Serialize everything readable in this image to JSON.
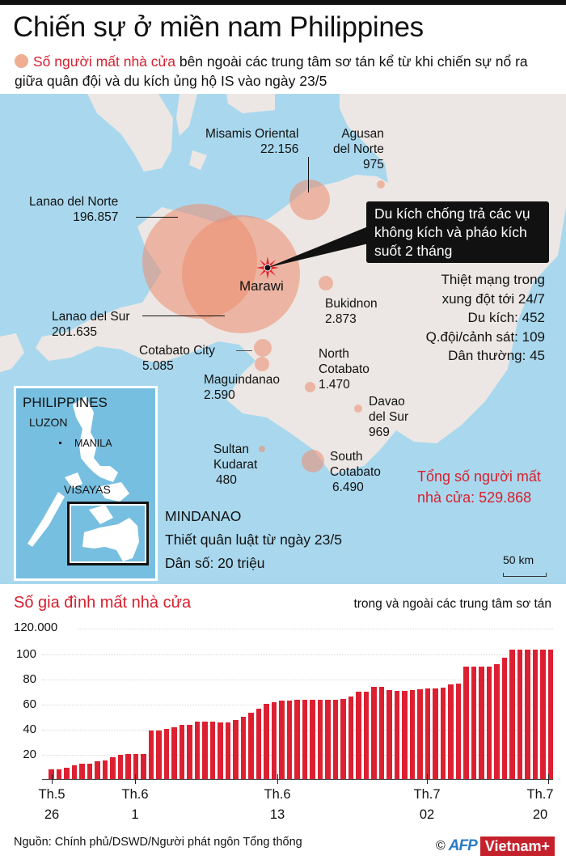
{
  "header": {
    "title": "Chiến sự ở miền nam Philippines",
    "subtitle_highlight": "Số người mất nhà cửa",
    "subtitle_rest": " bên ngoài các trung tâm sơ tán kể từ khi chiến sự nổ ra giữa quân đội và du kích ủng hộ IS vào ngày 23/5",
    "bullet_color": "#efad92",
    "accent_color": "#d6202e"
  },
  "map": {
    "provinces": [
      {
        "name": "Misamis Oriental",
        "value": "22.156"
      },
      {
        "name": "Agusan del Norte",
        "name_line1": "Agusan",
        "name_line2": "del Norte",
        "value": "975"
      },
      {
        "name": "Lanao del Norte",
        "value": "196.857"
      },
      {
        "name": "Lanao del Sur",
        "value": "201.635"
      },
      {
        "name": "Cotabato City",
        "value": "5.085"
      },
      {
        "name": "Maguindanao",
        "value": "2.590"
      },
      {
        "name": "Bukidnon",
        "value": "2.873"
      },
      {
        "name": "North Cotabato",
        "name_line1": "North",
        "name_line2": "Cotabato",
        "value": "1.470"
      },
      {
        "name": "Davao del Sur",
        "name_line1": "Davao",
        "name_line2": "del Sur",
        "value": "969"
      },
      {
        "name": "Sultan Kudarat",
        "name_line1": "Sultan",
        "name_line2": "Kudarat",
        "value": "480"
      },
      {
        "name": "South Cotabato",
        "name_line1": "South",
        "name_line2": "Cotabato",
        "value": "6.490"
      }
    ],
    "city": "Marawi",
    "callout": "Du kích chống trả các vụ không kích và pháo kích suốt 2 tháng",
    "casualties": {
      "heading_line1": "Thiệt mạng trong",
      "heading_line2": "xung đột tới 24/7",
      "rebels": "Du kích: 452",
      "military": "Q.đội/cảnh sát: 109",
      "civilians": "Dân thường: 45"
    },
    "total_line1": "Tổng số người mất",
    "total_line2": "nhà cửa: 529.868",
    "inset": {
      "title": "PHILIPPINES",
      "luzon": "LUZON",
      "manila": "MANILA",
      "visayas": "VISAYAS"
    },
    "region": {
      "name": "MINDANAO",
      "martial_law": "Thiết quân luật từ ngày 23/5",
      "population": "Dân số: 20 triệu"
    },
    "scale": "50 km",
    "colors": {
      "sea": "#a9d8ee",
      "land": "#ece7e4",
      "bubble": "#ec8c6e"
    }
  },
  "chart": {
    "title": "Số gia đình mất nhà cửa",
    "subtitle": "trong và ngoài các trung tâm sơ tán",
    "y_ticks": [
      "120.000",
      "100",
      "80",
      "60",
      "40",
      "20"
    ],
    "x_ticks": [
      {
        "month": "Th.5",
        "day": "26"
      },
      {
        "month": "Th.6",
        "day": "1"
      },
      {
        "month": "Th.6",
        "day": "13"
      },
      {
        "month": "Th.7",
        "day": "02"
      },
      {
        "month": "Th.7",
        "day": "20"
      }
    ]
  },
  "chart_data": {
    "type": "bar",
    "title": "Số gia đình mất nhà cửa",
    "subtitle": "trong và ngoài các trung tâm sơ tán",
    "xlabel": "",
    "ylabel": "Số gia đình",
    "ylim": [
      0,
      120000
    ],
    "y_tick_labels": [
      "20",
      "40",
      "60",
      "80",
      "100",
      "120.000"
    ],
    "x_tick_labels": [
      "Th.5 26",
      "Th.6 1",
      "Th.6 13",
      "Th.7 02",
      "Th.7 20"
    ],
    "grid": true,
    "bar_color": "#dd2031",
    "values": [
      8000,
      8000,
      9000,
      11000,
      12000,
      12500,
      14500,
      15000,
      17500,
      19500,
      20000,
      20000,
      20000,
      38500,
      38500,
      40000,
      41000,
      43000,
      43000,
      45500,
      45500,
      46000,
      45000,
      45000,
      47000,
      50000,
      53000,
      56000,
      60000,
      61000,
      62500,
      62500,
      63000,
      63000,
      63500,
      63500,
      63500,
      63500,
      64000,
      66000,
      70000,
      70000,
      73500,
      73500,
      71000,
      70500,
      70500,
      71000,
      71500,
      72500,
      72500,
      73000,
      75500,
      76000,
      89500,
      89500,
      89500,
      89500,
      91500,
      96500,
      103000,
      103000,
      103000,
      103000,
      103000,
      103500
    ]
  },
  "footer": {
    "source": "Nguồn: Chính phủ/DSWD/Người phát ngôn Tổng thống",
    "copyright": "©",
    "afp": "AFP",
    "vietnamplus": "Vietnam+"
  }
}
